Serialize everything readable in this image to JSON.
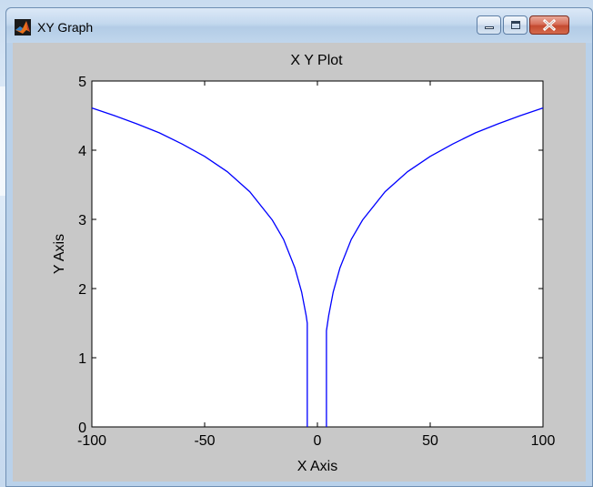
{
  "window": {
    "title": "XY Graph",
    "icon": "matlab-logo-icon",
    "controls": {
      "minimize_icon": "minimize-icon",
      "maximize_icon": "maximize-icon",
      "close_icon": "close-icon"
    }
  },
  "chart_data": {
    "type": "line",
    "title": "X Y Plot",
    "xlabel": "X Axis",
    "ylabel": "Y Axis",
    "xlim": [
      -100,
      100
    ],
    "ylim": [
      0,
      5
    ],
    "x_ticks": [
      -100,
      -50,
      0,
      50,
      100
    ],
    "y_ticks": [
      0,
      1,
      2,
      3,
      4,
      5
    ],
    "x_tick_labels": [
      "-100",
      "-50",
      "0",
      "50",
      "100"
    ],
    "y_tick_labels": [
      "0",
      "1",
      "2",
      "3",
      "4",
      "5"
    ],
    "grid": false,
    "series_color": "#0000ff",
    "series": [
      {
        "points_left": [
          [
            -100,
            4.61
          ],
          [
            -90,
            4.5
          ],
          [
            -80,
            4.38
          ],
          [
            -70,
            4.25
          ],
          [
            -60,
            4.09
          ],
          [
            -50,
            3.91
          ],
          [
            -40,
            3.69
          ],
          [
            -30,
            3.4
          ],
          [
            -20,
            2.99
          ],
          [
            -15,
            2.71
          ],
          [
            -10,
            2.3
          ],
          [
            -7,
            1.95
          ],
          [
            -5,
            1.61
          ],
          [
            -4.5,
            1.5
          ],
          [
            -4.5,
            0.0
          ]
        ],
        "points_right": [
          [
            4.0,
            0.0
          ],
          [
            4.0,
            1.39
          ],
          [
            5,
            1.61
          ],
          [
            7,
            1.95
          ],
          [
            10,
            2.3
          ],
          [
            15,
            2.71
          ],
          [
            20,
            2.99
          ],
          [
            30,
            3.4
          ],
          [
            40,
            3.69
          ],
          [
            50,
            3.91
          ],
          [
            60,
            4.09
          ],
          [
            70,
            4.25
          ],
          [
            80,
            4.38
          ],
          [
            90,
            4.5
          ],
          [
            100,
            4.61
          ]
        ]
      }
    ]
  }
}
